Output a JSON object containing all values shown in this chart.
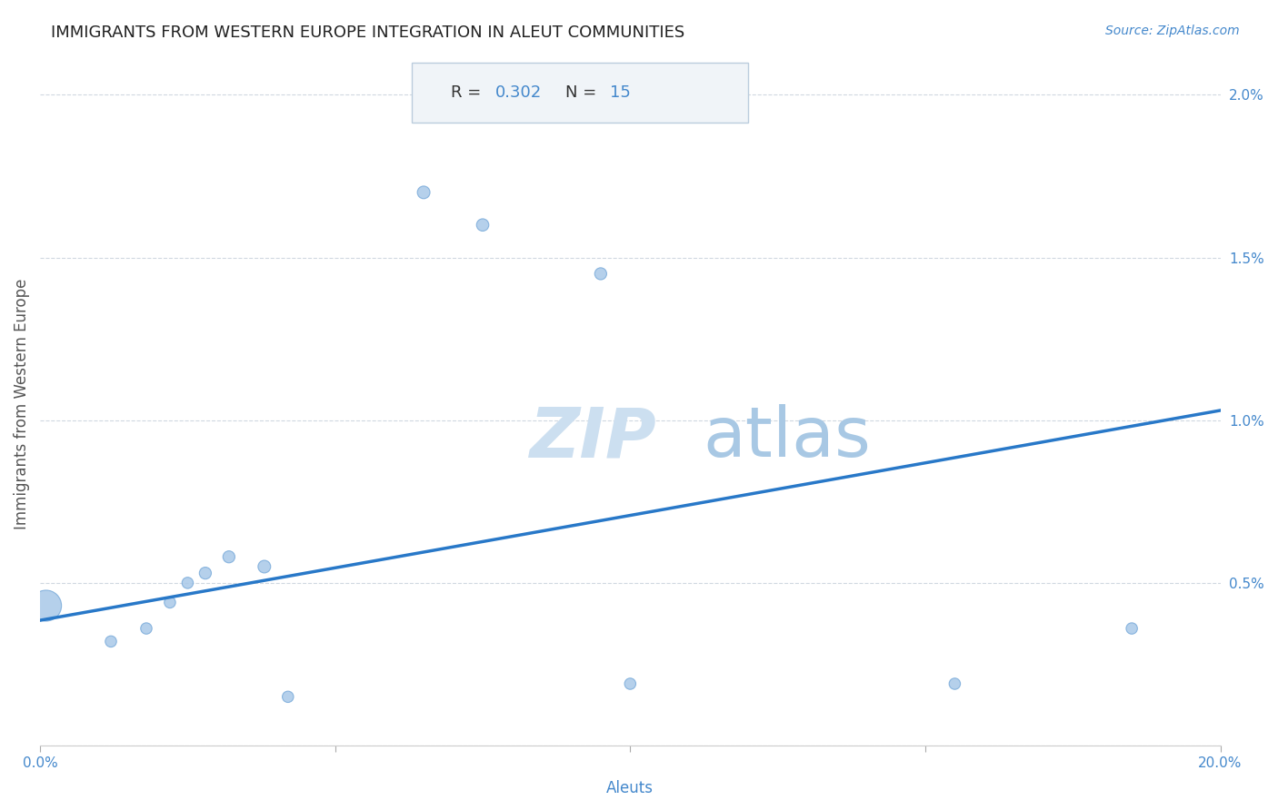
{
  "title": "IMMIGRANTS FROM WESTERN EUROPE INTEGRATION IN ALEUT COMMUNITIES",
  "source": "Source: ZipAtlas.com",
  "xlabel": "Aleuts",
  "ylabel": "Immigrants from Western Europe",
  "R": 0.302,
  "N": 15,
  "watermark_zip": "ZIP",
  "watermark_atlas": "atlas",
  "xlim": [
    0.0,
    0.2
  ],
  "ylim": [
    0.0,
    0.021
  ],
  "xticks": [
    0.0,
    0.05,
    0.1,
    0.15,
    0.2
  ],
  "yticks": [
    0.0,
    0.005,
    0.01,
    0.015,
    0.02
  ],
  "xtick_labels": [
    "0.0%",
    "",
    "",
    "",
    "20.0%"
  ],
  "ytick_labels": [
    "",
    "0.5%",
    "1.0%",
    "1.5%",
    "2.0%"
  ],
  "scatter_x": [
    0.001,
    0.012,
    0.018,
    0.022,
    0.025,
    0.028,
    0.032,
    0.038,
    0.042,
    0.065,
    0.075,
    0.095,
    0.1,
    0.155,
    0.185
  ],
  "scatter_y": [
    0.0043,
    0.0032,
    0.0036,
    0.0044,
    0.005,
    0.0053,
    0.0058,
    0.0055,
    0.0015,
    0.017,
    0.016,
    0.0145,
    0.0019,
    0.0019,
    0.0036
  ],
  "scatter_sizes": [
    600,
    80,
    80,
    80,
    80,
    90,
    90,
    100,
    80,
    100,
    95,
    90,
    80,
    80,
    80
  ],
  "scatter_color": "#a8c8e8",
  "scatter_edgecolor": "#7aabda",
  "line_color": "#2878c8",
  "line_start_x": 0.0,
  "line_start_y": 0.00385,
  "line_end_x": 0.2,
  "line_end_y": 0.0103,
  "grid_color": "#d0d8e0",
  "title_color": "#222222",
  "axis_label_color": "#4488cc",
  "annotation_box_color": "#f0f4f8",
  "annotation_text_color": "#333333",
  "annotation_value_color": "#4488cc",
  "title_fontsize": 13,
  "source_fontsize": 10,
  "axis_label_fontsize": 12,
  "tick_fontsize": 11,
  "annotation_fontsize": 13,
  "watermark_zip_fontsize": 55,
  "watermark_atlas_fontsize": 55,
  "watermark_zip_color": "#ccdff0",
  "watermark_atlas_color": "#a8c8e4"
}
